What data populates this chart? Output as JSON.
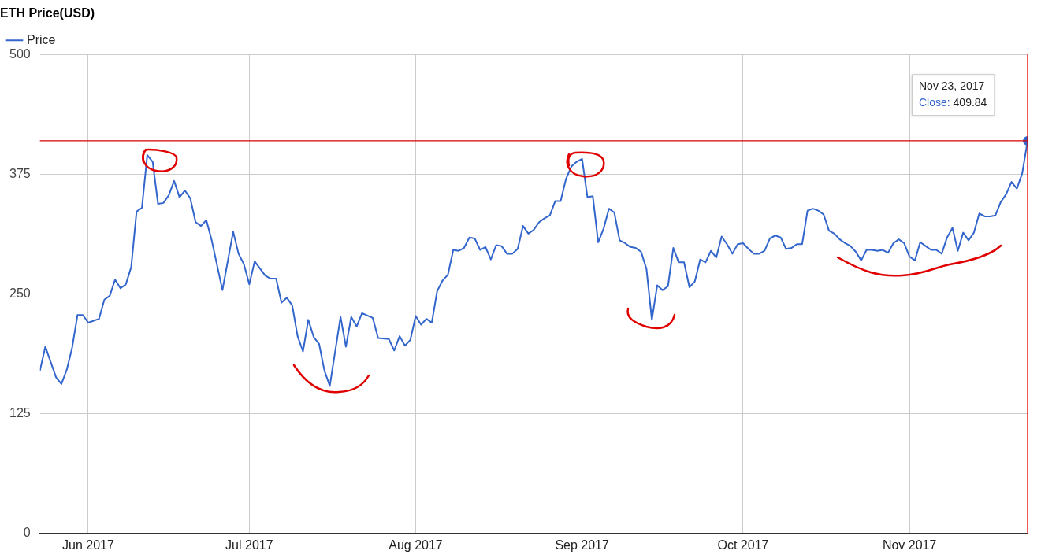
{
  "chart_data": {
    "type": "line",
    "title": "ETH Price(USD)",
    "x": [
      "2017-05-23",
      "2017-05-24",
      "2017-05-26",
      "2017-05-27",
      "2017-05-28",
      "2017-05-29",
      "2017-05-30",
      "2017-05-31",
      "2017-06-01",
      "2017-06-03",
      "2017-06-04",
      "2017-06-05",
      "2017-06-06",
      "2017-06-07",
      "2017-06-08",
      "2017-06-09",
      "2017-06-10",
      "2017-06-11",
      "2017-06-12",
      "2017-06-13",
      "2017-06-14",
      "2017-06-15",
      "2017-06-16",
      "2017-06-17",
      "2017-06-18",
      "2017-06-19",
      "2017-06-20",
      "2017-06-21",
      "2017-06-22",
      "2017-06-23",
      "2017-06-24",
      "2017-06-26",
      "2017-06-28",
      "2017-06-29",
      "2017-06-30",
      "2017-07-01",
      "2017-07-02",
      "2017-07-04",
      "2017-07-05",
      "2017-07-06",
      "2017-07-07",
      "2017-07-08",
      "2017-07-09",
      "2017-07-10",
      "2017-07-11",
      "2017-07-12",
      "2017-07-13",
      "2017-07-14",
      "2017-07-15",
      "2017-07-16",
      "2017-07-18",
      "2017-07-19",
      "2017-07-20",
      "2017-07-21",
      "2017-07-22",
      "2017-07-24",
      "2017-07-25",
      "2017-07-27",
      "2017-07-28",
      "2017-07-29",
      "2017-07-30",
      "2017-07-31",
      "2017-08-01",
      "2017-08-02",
      "2017-08-03",
      "2017-08-04",
      "2017-08-05",
      "2017-08-06",
      "2017-08-07",
      "2017-08-08",
      "2017-08-09",
      "2017-08-10",
      "2017-08-11",
      "2017-08-12",
      "2017-08-13",
      "2017-08-14",
      "2017-08-15",
      "2017-08-16",
      "2017-08-17",
      "2017-08-18",
      "2017-08-19",
      "2017-08-20",
      "2017-08-21",
      "2017-08-22",
      "2017-08-23",
      "2017-08-24",
      "2017-08-25",
      "2017-08-26",
      "2017-08-27",
      "2017-08-28",
      "2017-08-29",
      "2017-08-30",
      "2017-08-31",
      "2017-09-01",
      "2017-09-02",
      "2017-09-03",
      "2017-09-04",
      "2017-09-05",
      "2017-09-06",
      "2017-09-07",
      "2017-09-08",
      "2017-09-09",
      "2017-09-10",
      "2017-09-11",
      "2017-09-12",
      "2017-09-13",
      "2017-09-14",
      "2017-09-15",
      "2017-09-16",
      "2017-09-17",
      "2017-09-18",
      "2017-09-19",
      "2017-09-20",
      "2017-09-21",
      "2017-09-22",
      "2017-09-23",
      "2017-09-24",
      "2017-09-25",
      "2017-09-26",
      "2017-09-27",
      "2017-09-28",
      "2017-09-29",
      "2017-09-30",
      "2017-10-01",
      "2017-10-02",
      "2017-10-03",
      "2017-10-04",
      "2017-10-05",
      "2017-10-06",
      "2017-10-07",
      "2017-10-08",
      "2017-10-09",
      "2017-10-10",
      "2017-10-11",
      "2017-10-12",
      "2017-10-13",
      "2017-10-14",
      "2017-10-15",
      "2017-10-16",
      "2017-10-17",
      "2017-10-18",
      "2017-10-19",
      "2017-10-20",
      "2017-10-21",
      "2017-10-22",
      "2017-10-23",
      "2017-10-24",
      "2017-10-25",
      "2017-10-26",
      "2017-10-27",
      "2017-10-28",
      "2017-10-29",
      "2017-10-30",
      "2017-10-31",
      "2017-11-01",
      "2017-11-02",
      "2017-11-03",
      "2017-11-04",
      "2017-11-05",
      "2017-11-06",
      "2017-11-07",
      "2017-11-08",
      "2017-11-09",
      "2017-11-10",
      "2017-11-11",
      "2017-11-12",
      "2017-11-13",
      "2017-11-14",
      "2017-11-15",
      "2017-11-16",
      "2017-11-17",
      "2017-11-18",
      "2017-11-19",
      "2017-11-20",
      "2017-11-21",
      "2017-11-22",
      "2017-11-23"
    ],
    "series": [
      {
        "name": "Price",
        "color": "#3366cc",
        "values": [
          170,
          195,
          163,
          156,
          171,
          194,
          228,
          228,
          220,
          224,
          244,
          248,
          265,
          256,
          260,
          278,
          336,
          340,
          395,
          388,
          344,
          345,
          353,
          368,
          351,
          358,
          350,
          325,
          321,
          327,
          306,
          254,
          315,
          292,
          281,
          260,
          284,
          269,
          266,
          266,
          241,
          246,
          238,
          206,
          190,
          223,
          205,
          198,
          170,
          154,
          226,
          195,
          226,
          216,
          230,
          225,
          204,
          203,
          191,
          206,
          196,
          202,
          227,
          218,
          224,
          220,
          253,
          264,
          270,
          296,
          295,
          298,
          309,
          308,
          296,
          299,
          286,
          301,
          300,
          292,
          292,
          297,
          321,
          313,
          317,
          325,
          329,
          332,
          347,
          347,
          370,
          383,
          388,
          391,
          351,
          352,
          304,
          318,
          339,
          335,
          306,
          303,
          299,
          298,
          294,
          276,
          223,
          259,
          254,
          258,
          298,
          283,
          283,
          257,
          263,
          286,
          283,
          295,
          288,
          310,
          302,
          292,
          302,
          303,
          297,
          292,
          292,
          295,
          308,
          311,
          309,
          297,
          298,
          302,
          302,
          337,
          339,
          337,
          333,
          316,
          313,
          307,
          303,
          300,
          294,
          285,
          296,
          296,
          295,
          296,
          293,
          303,
          307,
          303,
          289,
          285,
          304,
          300,
          296,
          296,
          292,
          309,
          319,
          295,
          314,
          306,
          314,
          334,
          331,
          331,
          332,
          346,
          354,
          367,
          360,
          376,
          409.84
        ]
      }
    ],
    "xlim": [
      "2017-05-23",
      "2017-11-23"
    ],
    "xticks": [
      {
        "value": "2017-06-01",
        "label": "Jun 2017"
      },
      {
        "value": "2017-07-01",
        "label": "Jul 2017"
      },
      {
        "value": "2017-08-01",
        "label": "Aug 2017"
      },
      {
        "value": "2017-09-01",
        "label": "Sep 2017"
      },
      {
        "value": "2017-10-01",
        "label": "Oct 2017"
      },
      {
        "value": "2017-11-01",
        "label": "Nov 2017"
      }
    ],
    "ylim": [
      0,
      500
    ],
    "yticks": [
      0,
      125,
      250,
      375,
      500
    ],
    "grid": true,
    "legend": "top left",
    "marker": "none",
    "line_style": "solid",
    "ref_lines": [
      {
        "axis": "y",
        "value": 409.84,
        "color": "#dd0000"
      },
      {
        "axis": "x",
        "value": "2017-11-23",
        "color": "#dd0000"
      }
    ],
    "annotations": [
      "Nov 23, 2017\nClose: 409.84"
    ]
  }
}
